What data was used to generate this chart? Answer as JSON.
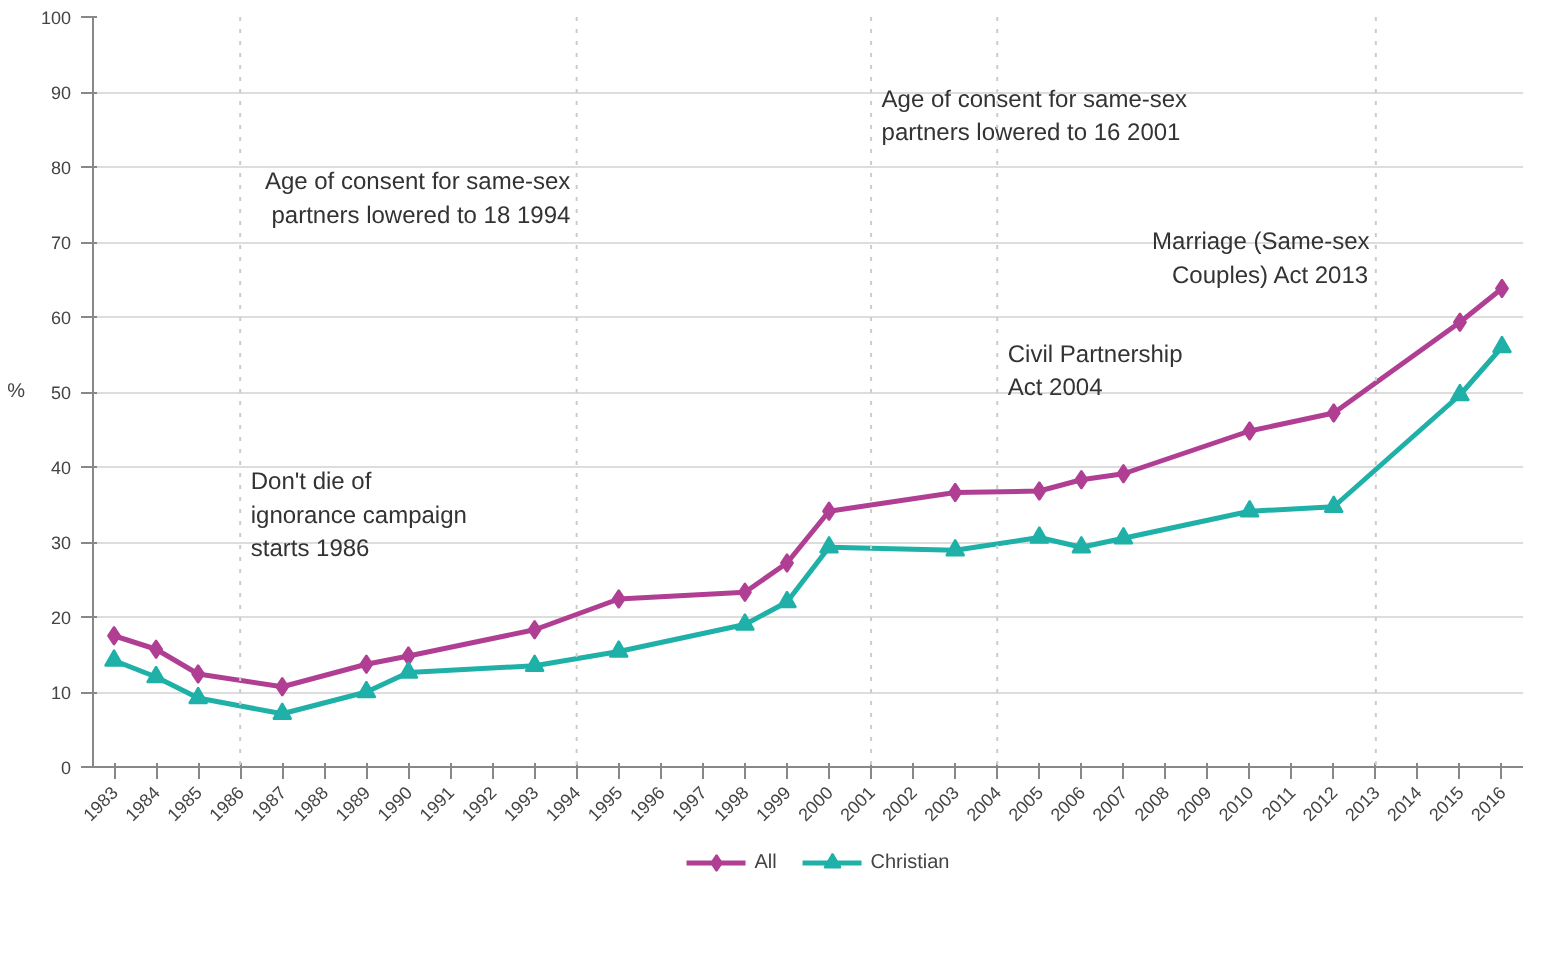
{
  "chart_data": {
    "type": "line",
    "ylabel": "%",
    "categories": [
      "1983",
      "1984",
      "1985",
      "1986",
      "1987",
      "1988",
      "1989",
      "1990",
      "1991",
      "1992",
      "1993",
      "1994",
      "1995",
      "1996",
      "1997",
      "1998",
      "1999",
      "2000",
      "2001",
      "2002",
      "2003",
      "2004",
      "2005",
      "2006",
      "2007",
      "2008",
      "2009",
      "2010",
      "2011",
      "2012",
      "2013",
      "2014",
      "2015",
      "2016"
    ],
    "series": [
      {
        "name": "All",
        "color": "#b03f94",
        "marker": "diamond",
        "values": [
          17.5,
          15.7,
          12.4,
          null,
          10.7,
          null,
          13.7,
          14.8,
          null,
          null,
          18.3,
          null,
          22.4,
          null,
          null,
          23.3,
          27.2,
          34.1,
          null,
          null,
          36.6,
          null,
          36.8,
          38.3,
          39.1,
          null,
          null,
          44.8,
          null,
          47.2,
          null,
          null,
          59.3,
          63.8
        ]
      },
      {
        "name": "Christian",
        "color": "#1fb0a8",
        "marker": "triangle",
        "values": [
          14.2,
          12.0,
          9.2,
          null,
          7.1,
          null,
          10.0,
          12.6,
          null,
          null,
          13.5,
          null,
          15.4,
          null,
          null,
          19.0,
          22.0,
          29.3,
          null,
          null,
          28.9,
          null,
          30.6,
          29.3,
          30.5,
          null,
          null,
          34.1,
          null,
          34.7,
          null,
          null,
          49.6,
          56.0
        ]
      }
    ],
    "ylim": [
      0,
      100
    ],
    "yticks": [
      0,
      10,
      20,
      30,
      40,
      50,
      60,
      70,
      80,
      90,
      100
    ],
    "grid": "y",
    "legend": "bottom",
    "ref_lines": [
      {
        "axis": "x",
        "value": "1986",
        "label": "Don't die of ignorance campaign starts 1986",
        "color": "#cccccc",
        "line_style": "dotted"
      },
      {
        "axis": "x",
        "value": "1994",
        "label": "Age of consent for same-sex partners lowered to 18 1994",
        "color": "#cccccc",
        "line_style": "dotted"
      },
      {
        "axis": "x",
        "value": "2001",
        "label": "Age of consent for same-sex partners lowered to 16 2001",
        "color": "#cccccc",
        "line_style": "dotted"
      },
      {
        "axis": "x",
        "value": "2004",
        "label": "Civil Partnership Act 2004",
        "color": "#cccccc",
        "line_style": "dotted"
      },
      {
        "axis": "x",
        "value": "2013",
        "label": "Marriage (Same-sex Couples) Act 2013",
        "color": "#cccccc",
        "line_style": "dotted"
      }
    ]
  }
}
